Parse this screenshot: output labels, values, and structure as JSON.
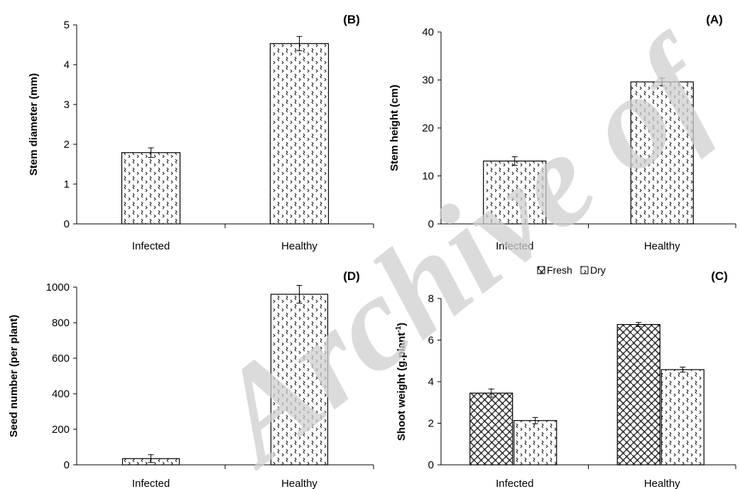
{
  "watermark": {
    "text": "Archive of"
  },
  "chart_data": [
    {
      "id": "B",
      "type": "bar",
      "panel_label": "(B)",
      "ylabel": "Stem diameter (mm)",
      "xlabel": "",
      "categories": [
        "Infected",
        "Healthy"
      ],
      "series": [
        {
          "values": [
            1.79,
            4.53
          ],
          "errors": [
            0.12,
            0.18
          ],
          "pattern": "dots"
        }
      ],
      "ylim": [
        0,
        5
      ],
      "yticks": [
        0,
        1,
        2,
        3,
        4,
        5
      ],
      "grid": false
    },
    {
      "id": "A",
      "type": "bar",
      "panel_label": "(A)",
      "ylabel": "Stem height (cm)",
      "xlabel": "",
      "categories": [
        "Infected",
        "Healthy"
      ],
      "series": [
        {
          "values": [
            13.1,
            29.6
          ],
          "errors": [
            0.9,
            0.8
          ],
          "pattern": "dots"
        }
      ],
      "ylim": [
        0,
        40
      ],
      "yticks": [
        0,
        10,
        20,
        30,
        40
      ],
      "grid": false
    },
    {
      "id": "D",
      "type": "bar",
      "panel_label": "(D)",
      "ylabel": "Seed number (per plant)",
      "xlabel": "",
      "categories": [
        "Infected",
        "Healthy"
      ],
      "series": [
        {
          "values": [
            35,
            960
          ],
          "errors": [
            22,
            50
          ],
          "pattern": "dots"
        }
      ],
      "ylim": [
        0,
        1000
      ],
      "yticks": [
        0,
        200,
        400,
        600,
        800,
        1000
      ],
      "grid": false
    },
    {
      "id": "C",
      "type": "bar",
      "panel_label": "(C)",
      "ylabel": "Shoot weight (g.plant",
      "ylabel_sup": "-1",
      "ylabel_end": ")",
      "xlabel": "",
      "categories": [
        "Infected",
        "Healthy"
      ],
      "series": [
        {
          "name": "Fresh",
          "values": [
            3.45,
            6.75
          ],
          "errors": [
            0.2,
            0.1
          ],
          "pattern": "weave"
        },
        {
          "name": "Dry",
          "values": [
            2.13,
            4.58
          ],
          "errors": [
            0.15,
            0.12
          ],
          "pattern": "dots"
        }
      ],
      "ylim": [
        0,
        8
      ],
      "yticks": [
        0,
        2,
        4,
        6,
        8
      ],
      "legend": "top-center",
      "grid": false
    }
  ]
}
